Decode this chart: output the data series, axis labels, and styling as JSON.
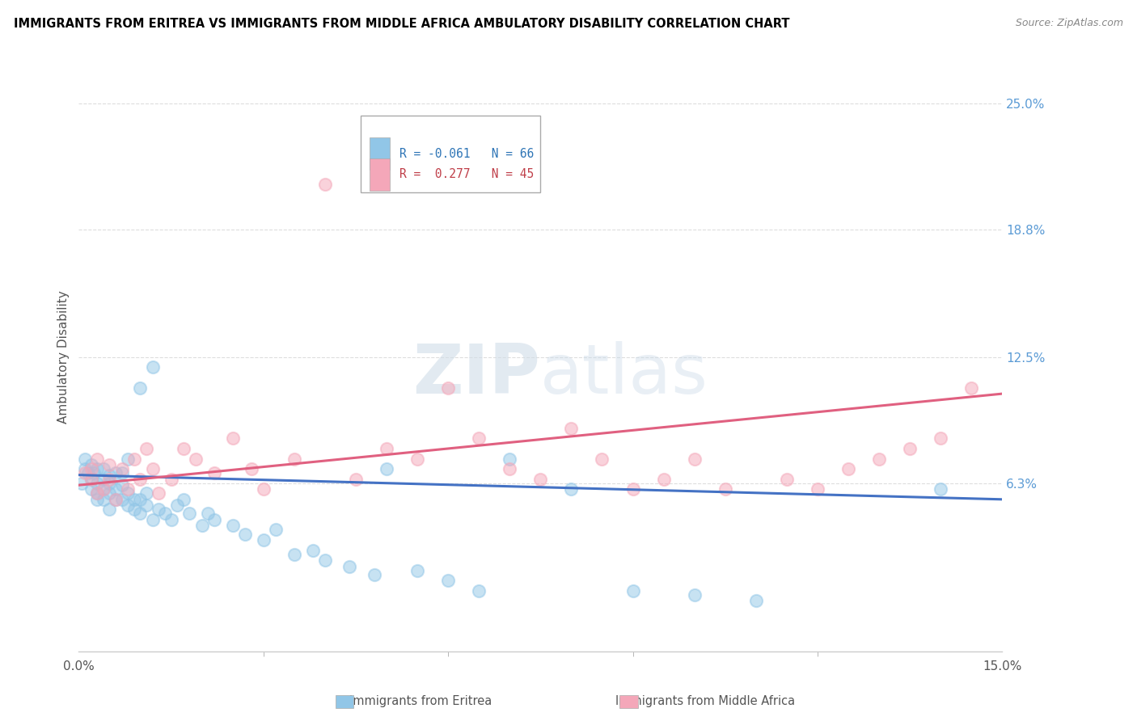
{
  "title": "IMMIGRANTS FROM ERITREA VS IMMIGRANTS FROM MIDDLE AFRICA AMBULATORY DISABILITY CORRELATION CHART",
  "source": "Source: ZipAtlas.com",
  "ylabel": "Ambulatory Disability",
  "y_ticks": [
    0.0,
    0.063,
    0.125,
    0.188,
    0.25
  ],
  "y_tick_labels": [
    "",
    "6.3%",
    "12.5%",
    "18.8%",
    "25.0%"
  ],
  "x_lim": [
    0.0,
    0.15
  ],
  "y_lim": [
    -0.02,
    0.27
  ],
  "watermark": "ZIPatlas",
  "eritrea_x": [
    0.0005,
    0.001,
    0.001,
    0.0015,
    0.002,
    0.002,
    0.002,
    0.0025,
    0.003,
    0.003,
    0.003,
    0.003,
    0.004,
    0.004,
    0.004,
    0.004,
    0.005,
    0.005,
    0.005,
    0.005,
    0.006,
    0.006,
    0.006,
    0.007,
    0.007,
    0.007,
    0.008,
    0.008,
    0.008,
    0.009,
    0.009,
    0.01,
    0.01,
    0.01,
    0.011,
    0.011,
    0.012,
    0.012,
    0.013,
    0.014,
    0.015,
    0.016,
    0.017,
    0.018,
    0.02,
    0.021,
    0.022,
    0.025,
    0.027,
    0.03,
    0.032,
    0.035,
    0.038,
    0.04,
    0.044,
    0.048,
    0.05,
    0.055,
    0.06,
    0.065,
    0.07,
    0.08,
    0.09,
    0.1,
    0.11,
    0.14
  ],
  "eritrea_y": [
    0.063,
    0.07,
    0.075,
    0.068,
    0.065,
    0.072,
    0.06,
    0.068,
    0.058,
    0.063,
    0.07,
    0.055,
    0.06,
    0.065,
    0.055,
    0.07,
    0.058,
    0.063,
    0.067,
    0.05,
    0.055,
    0.06,
    0.068,
    0.055,
    0.062,
    0.068,
    0.052,
    0.058,
    0.075,
    0.05,
    0.055,
    0.048,
    0.055,
    0.11,
    0.052,
    0.058,
    0.045,
    0.12,
    0.05,
    0.048,
    0.045,
    0.052,
    0.055,
    0.048,
    0.042,
    0.048,
    0.045,
    0.042,
    0.038,
    0.035,
    0.04,
    0.028,
    0.03,
    0.025,
    0.022,
    0.018,
    0.07,
    0.02,
    0.015,
    0.01,
    0.075,
    0.06,
    0.01,
    0.008,
    0.005,
    0.06
  ],
  "middle_africa_x": [
    0.001,
    0.002,
    0.002,
    0.003,
    0.003,
    0.004,
    0.005,
    0.005,
    0.006,
    0.007,
    0.008,
    0.009,
    0.01,
    0.011,
    0.012,
    0.013,
    0.015,
    0.017,
    0.019,
    0.022,
    0.025,
    0.028,
    0.03,
    0.035,
    0.04,
    0.045,
    0.05,
    0.055,
    0.06,
    0.065,
    0.07,
    0.075,
    0.08,
    0.085,
    0.09,
    0.095,
    0.1,
    0.105,
    0.115,
    0.12,
    0.125,
    0.13,
    0.135,
    0.14,
    0.145
  ],
  "middle_africa_y": [
    0.068,
    0.065,
    0.07,
    0.058,
    0.075,
    0.06,
    0.072,
    0.065,
    0.055,
    0.07,
    0.06,
    0.075,
    0.065,
    0.08,
    0.07,
    0.058,
    0.065,
    0.08,
    0.075,
    0.068,
    0.085,
    0.07,
    0.06,
    0.075,
    0.21,
    0.065,
    0.08,
    0.075,
    0.11,
    0.085,
    0.07,
    0.065,
    0.09,
    0.075,
    0.06,
    0.065,
    0.075,
    0.06,
    0.065,
    0.06,
    0.07,
    0.075,
    0.08,
    0.085,
    0.11
  ],
  "eritrea_color": "#91C6E7",
  "eritrea_line_color": "#4472C4",
  "middle_africa_color": "#F4A7B9",
  "middle_africa_line_color": "#E06080",
  "legend_R1": "R = -0.061",
  "legend_N1": "N = 66",
  "legend_R2": "R =  0.277",
  "legend_N2": "N = 45",
  "label1": "Immigrants from Eritrea",
  "label2": "Immigrants from Middle Africa"
}
